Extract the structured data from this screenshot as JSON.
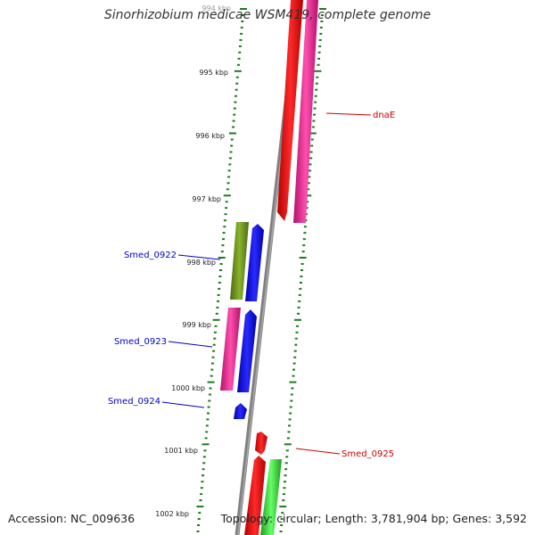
{
  "title": "Sinorhizobium medicae WSM419, complete genome",
  "footer": {
    "accession": "Accession: NC_009636",
    "summary": "Topology: circular; Length: 3,781,904 bp; Genes: 3,592"
  },
  "scale_labels": [
    "994 kbp",
    "995 kbp",
    "996 kbp",
    "997 kbp",
    "998 kbp",
    "999 kbp",
    "1000 kbp",
    "1001 kbp",
    "1002 kbp"
  ],
  "genes": [
    {
      "name": "dnaE",
      "label_color": "#cc0000"
    },
    {
      "name": "Smed_0922",
      "label_color": "#0000cc"
    },
    {
      "name": "Smed_0923",
      "label_color": "#0000cc"
    },
    {
      "name": "Smed_0924",
      "label_color": "#0000cc"
    },
    {
      "name": "Smed_0925",
      "label_color": "#cc0000"
    }
  ],
  "colors": {
    "backbone": "#7a7a7a",
    "red": "#ee0000",
    "pink": "#ee1a8c",
    "blue": "#0000ee",
    "olive": "#6b8f1e",
    "green": "#33cc33",
    "tick": "#1f7a1f"
  }
}
